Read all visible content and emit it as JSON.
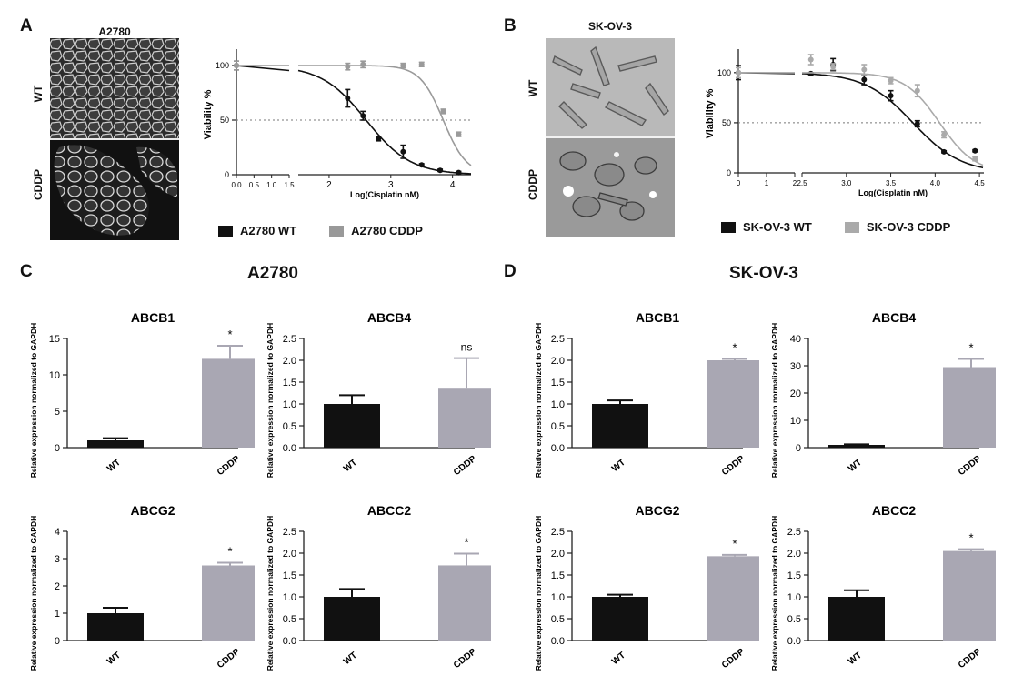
{
  "panels": {
    "A": {
      "letter": "A",
      "cell_line": "A2780",
      "row_labels": [
        "WT",
        "CDDP"
      ]
    },
    "B": {
      "letter": "B",
      "cell_line": "SK-OV-3",
      "row_labels": [
        "WT",
        "CDDP"
      ]
    },
    "C": {
      "letter": "C",
      "title": "A2780"
    },
    "D": {
      "letter": "D",
      "title": "SK-OV-3"
    }
  },
  "colors": {
    "wt": "#111111",
    "cddp_curve": "#9a9a9a",
    "cddp_bar": "#a9a7b3",
    "ref_line": "#777777"
  },
  "legends": {
    "A": [
      {
        "label": "A2780 WT",
        "color": "#111111"
      },
      {
        "label": "A2780 CDDP",
        "color": "#999999"
      }
    ],
    "B": [
      {
        "label": "SK-OV-3 WT",
        "color": "#111111"
      },
      {
        "label": "SK-OV-3 CDDP",
        "color": "#aaaaaa"
      }
    ]
  },
  "chart_data": [
    {
      "id": "A-curve",
      "type": "line",
      "ylabel": "Viability %",
      "xlabel": "Log(Cisplatin nM)",
      "ylim": [
        0,
        110
      ],
      "yticks": [
        0,
        50,
        100
      ],
      "ref_line": 50,
      "break": {
        "low_ticks": [
          "0.0",
          "0.5",
          "1.0",
          "1.5"
        ],
        "low_range": [
          0,
          1.5
        ],
        "high_range": [
          1.5,
          4.3
        ],
        "high_ticks": [
          2,
          3,
          4
        ]
      },
      "series": [
        {
          "name": "A2780 WT",
          "logIC50": 2.6,
          "hill": 1.2,
          "points": [
            {
              "x": 0,
              "y": 100,
              "err": 4
            },
            {
              "x": 2.3,
              "y": 70,
              "err": 8
            },
            {
              "x": 2.55,
              "y": 54,
              "err": 4
            },
            {
              "x": 2.8,
              "y": 33,
              "err": 2
            },
            {
              "x": 3.2,
              "y": 21,
              "err": 6
            },
            {
              "x": 3.5,
              "y": 9,
              "err": 1
            },
            {
              "x": 3.8,
              "y": 4,
              "err": 1
            },
            {
              "x": 4.1,
              "y": 2,
              "err": 1
            }
          ]
        },
        {
          "name": "A2780 CDDP",
          "logIC50": 3.85,
          "hill": 2.3,
          "points": [
            {
              "x": 0,
              "y": 100,
              "err": 4
            },
            {
              "x": 2.3,
              "y": 99,
              "err": 3
            },
            {
              "x": 2.55,
              "y": 101,
              "err": 3
            },
            {
              "x": 3.2,
              "y": 100,
              "err": 2
            },
            {
              "x": 3.5,
              "y": 101,
              "err": 2
            },
            {
              "x": 3.85,
              "y": 58,
              "err": 2
            },
            {
              "x": 4.1,
              "y": 37,
              "err": 2
            }
          ]
        }
      ]
    },
    {
      "id": "B-curve",
      "type": "line",
      "ylabel": "Viability %",
      "xlabel": "Log(Cisplatin nM)",
      "ylim": [
        0,
        118
      ],
      "yticks": [
        0,
        50,
        100
      ],
      "ref_line": 50,
      "break": {
        "low_ticks": [
          "0",
          "1",
          "2"
        ],
        "low_range": [
          0,
          2.5
        ],
        "high_range": [
          2.5,
          4.55
        ],
        "high_ticks": [
          "2.5",
          "3.0",
          "3.5",
          "4.0",
          "4.5"
        ]
      },
      "series": [
        {
          "name": "SK-OV-3 WT",
          "logIC50": 3.75,
          "hill": 1.6,
          "points": [
            {
              "x": 0,
              "y": 100,
              "err": 7
            },
            {
              "x": 2.6,
              "y": 99,
              "err": 1
            },
            {
              "x": 2.85,
              "y": 108,
              "err": 6
            },
            {
              "x": 3.2,
              "y": 93,
              "err": 5
            },
            {
              "x": 3.5,
              "y": 77,
              "err": 5
            },
            {
              "x": 3.8,
              "y": 49,
              "err": 3
            },
            {
              "x": 4.1,
              "y": 21,
              "err": 1
            },
            {
              "x": 4.45,
              "y": 22,
              "err": 1
            }
          ]
        },
        {
          "name": "SK-OV-3 CDDP",
          "logIC50": 4.05,
          "hill": 2.2,
          "points": [
            {
              "x": 0,
              "y": 100,
              "err": 5
            },
            {
              "x": 2.6,
              "y": 113,
              "err": 5
            },
            {
              "x": 2.85,
              "y": 106,
              "err": 3
            },
            {
              "x": 3.2,
              "y": 103,
              "err": 5
            },
            {
              "x": 3.5,
              "y": 92,
              "err": 3
            },
            {
              "x": 3.8,
              "y": 82,
              "err": 6
            },
            {
              "x": 4.1,
              "y": 38,
              "err": 3
            },
            {
              "x": 4.45,
              "y": 14,
              "err": 2
            }
          ]
        }
      ]
    },
    {
      "id": "C-ABCB1",
      "type": "bar",
      "title": "ABCB1",
      "ylabel": "Relative expression normalized to GAPDH",
      "categories": [
        "WT",
        "CDDP"
      ],
      "values": [
        1.0,
        12.2
      ],
      "errors": [
        0.3,
        1.8
      ],
      "ylim": [
        0,
        15
      ],
      "yticks": [
        "0",
        "5",
        "10",
        "15"
      ],
      "sig": [
        "",
        "*"
      ]
    },
    {
      "id": "C-ABCB4",
      "type": "bar",
      "title": "ABCB4",
      "ylabel": "Relative expression normalized to GAPDH",
      "categories": [
        "WT",
        "CDDP"
      ],
      "values": [
        1.0,
        1.35
      ],
      "errors": [
        0.2,
        0.7
      ],
      "ylim": [
        0,
        2.5
      ],
      "yticks": [
        "0.0",
        "0.5",
        "1.0",
        "1.5",
        "2.0",
        "2.5"
      ],
      "sig": [
        "",
        "ns"
      ]
    },
    {
      "id": "C-ABCG2",
      "type": "bar",
      "title": "ABCG2",
      "ylabel": "Relative expression normalized to GAPDH",
      "categories": [
        "WT",
        "CDDP"
      ],
      "values": [
        1.0,
        2.75
      ],
      "errors": [
        0.2,
        0.1
      ],
      "ylim": [
        0,
        4
      ],
      "yticks": [
        "0",
        "1",
        "2",
        "3",
        "4"
      ],
      "sig": [
        "",
        "*"
      ]
    },
    {
      "id": "C-ABCC2",
      "type": "bar",
      "title": "ABCC2",
      "ylabel": "Relative expression normalized to GAPDH",
      "categories": [
        "WT",
        "CDDP"
      ],
      "values": [
        1.0,
        1.72
      ],
      "errors": [
        0.18,
        0.27
      ],
      "ylim": [
        0,
        2.5
      ],
      "yticks": [
        "0.0",
        "0.5",
        "1.0",
        "1.5",
        "2.0",
        "2.5"
      ],
      "sig": [
        "",
        "*"
      ]
    },
    {
      "id": "D-ABCB1",
      "type": "bar",
      "title": "ABCB1",
      "ylabel": "Relative expression normalized to GAPDH",
      "categories": [
        "WT",
        "CDDP"
      ],
      "values": [
        1.0,
        2.0
      ],
      "errors": [
        0.08,
        0.03
      ],
      "ylim": [
        0,
        2.5
      ],
      "yticks": [
        "0.0",
        "0.5",
        "1.0",
        "1.5",
        "2.0",
        "2.5"
      ],
      "sig": [
        "",
        "*"
      ]
    },
    {
      "id": "D-ABCB4",
      "type": "bar",
      "title": "ABCB4",
      "ylabel": "Relative expression normalized to GAPDH",
      "categories": [
        "WT",
        "CDDP"
      ],
      "values": [
        1.0,
        29.5
      ],
      "errors": [
        0.2,
        3.0
      ],
      "ylim": [
        0,
        40
      ],
      "yticks": [
        "0",
        "10",
        "20",
        "30",
        "40"
      ],
      "sig": [
        "",
        "*"
      ]
    },
    {
      "id": "D-ABCG2",
      "type": "bar",
      "title": "ABCG2",
      "ylabel": "Relative expression normalized to GAPDH",
      "categories": [
        "WT",
        "CDDP"
      ],
      "values": [
        1.0,
        1.93
      ],
      "errors": [
        0.05,
        0.03
      ],
      "ylim": [
        0,
        2.5
      ],
      "yticks": [
        "0.0",
        "0.5",
        "1.0",
        "1.5",
        "2.0",
        "2.5"
      ],
      "sig": [
        "",
        "*"
      ]
    },
    {
      "id": "D-ABCC2",
      "type": "bar",
      "title": "ABCC2",
      "ylabel": "Relative expression normalized to GAPDH",
      "categories": [
        "WT",
        "CDDP"
      ],
      "values": [
        1.0,
        2.05
      ],
      "errors": [
        0.15,
        0.04
      ],
      "ylim": [
        0,
        2.5
      ],
      "yticks": [
        "0.0",
        "0.5",
        "1.0",
        "1.5",
        "2.0",
        "2.5"
      ],
      "sig": [
        "",
        "*"
      ]
    }
  ]
}
